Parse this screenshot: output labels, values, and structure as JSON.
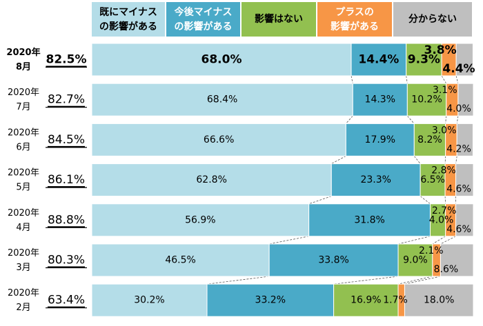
{
  "chart_data": {
    "type": "bar",
    "stacked": true,
    "orientation": "horizontal",
    "legend_position": "top",
    "legend": [
      {
        "line1": "既にマイナス",
        "line2": "の影響がある",
        "color": "#b4dde8",
        "text_color": "#000000"
      },
      {
        "line1": "今後マイナス",
        "line2": "の影響がある",
        "color": "#4aaac8",
        "text_color": "#ffffff"
      },
      {
        "line1": "影響はない",
        "line2": "",
        "color": "#92c050",
        "text_color": "#000000"
      },
      {
        "line1": "プラスの",
        "line2": "影響がある",
        "color": "#f79646",
        "text_color": "#ffffff"
      },
      {
        "line1": "分からない",
        "line2": "",
        "color": "#bfbfbf",
        "text_color": "#000000"
      }
    ],
    "rows": [
      {
        "year": "2020年",
        "month": "8月",
        "total": "82.5%",
        "values": [
          68.0,
          14.4,
          9.3,
          3.8,
          4.4
        ],
        "labels": [
          "68.0%",
          "14.4%",
          "9.3%",
          "3.8%",
          "4.4%"
        ],
        "highlight": true
      },
      {
        "year": "2020年",
        "month": "7月",
        "total": "82.7%",
        "values": [
          68.4,
          14.3,
          10.2,
          3.1,
          4.0
        ],
        "labels": [
          "68.4%",
          "14.3%",
          "10.2%",
          "3.1%",
          "4.0%"
        ],
        "highlight": false
      },
      {
        "year": "2020年",
        "month": "6月",
        "total": "84.5%",
        "values": [
          66.6,
          17.9,
          8.2,
          3.0,
          4.2
        ],
        "labels": [
          "66.6%",
          "17.9%",
          "8.2%",
          "3.0%",
          "4.2%"
        ],
        "highlight": false
      },
      {
        "year": "2020年",
        "month": "5月",
        "total": "86.1%",
        "values": [
          62.8,
          23.3,
          6.5,
          2.8,
          4.6
        ],
        "labels": [
          "62.8%",
          "23.3%",
          "6.5%",
          "2.8%",
          "4.6%"
        ],
        "highlight": false
      },
      {
        "year": "2020年",
        "month": "4月",
        "total": "88.8%",
        "values": [
          56.9,
          31.8,
          4.0,
          2.7,
          4.6
        ],
        "labels": [
          "56.9%",
          "31.8%",
          "4.0%",
          "2.7%",
          "4.6%"
        ],
        "highlight": false
      },
      {
        "year": "2020年",
        "month": "3月",
        "total": "80.3%",
        "values": [
          46.5,
          33.8,
          9.0,
          2.1,
          8.6
        ],
        "labels": [
          "46.5%",
          "33.8%",
          "9.0%",
          "2.1%",
          "8.6%"
        ],
        "highlight": false
      },
      {
        "year": "2020年",
        "month": "2月",
        "total": "63.4%",
        "values": [
          30.2,
          33.2,
          16.9,
          1.7,
          18.0
        ],
        "labels": [
          "30.2%",
          "33.2%",
          "16.9%",
          "1.7%",
          "18.0%"
        ],
        "highlight": false
      }
    ]
  }
}
